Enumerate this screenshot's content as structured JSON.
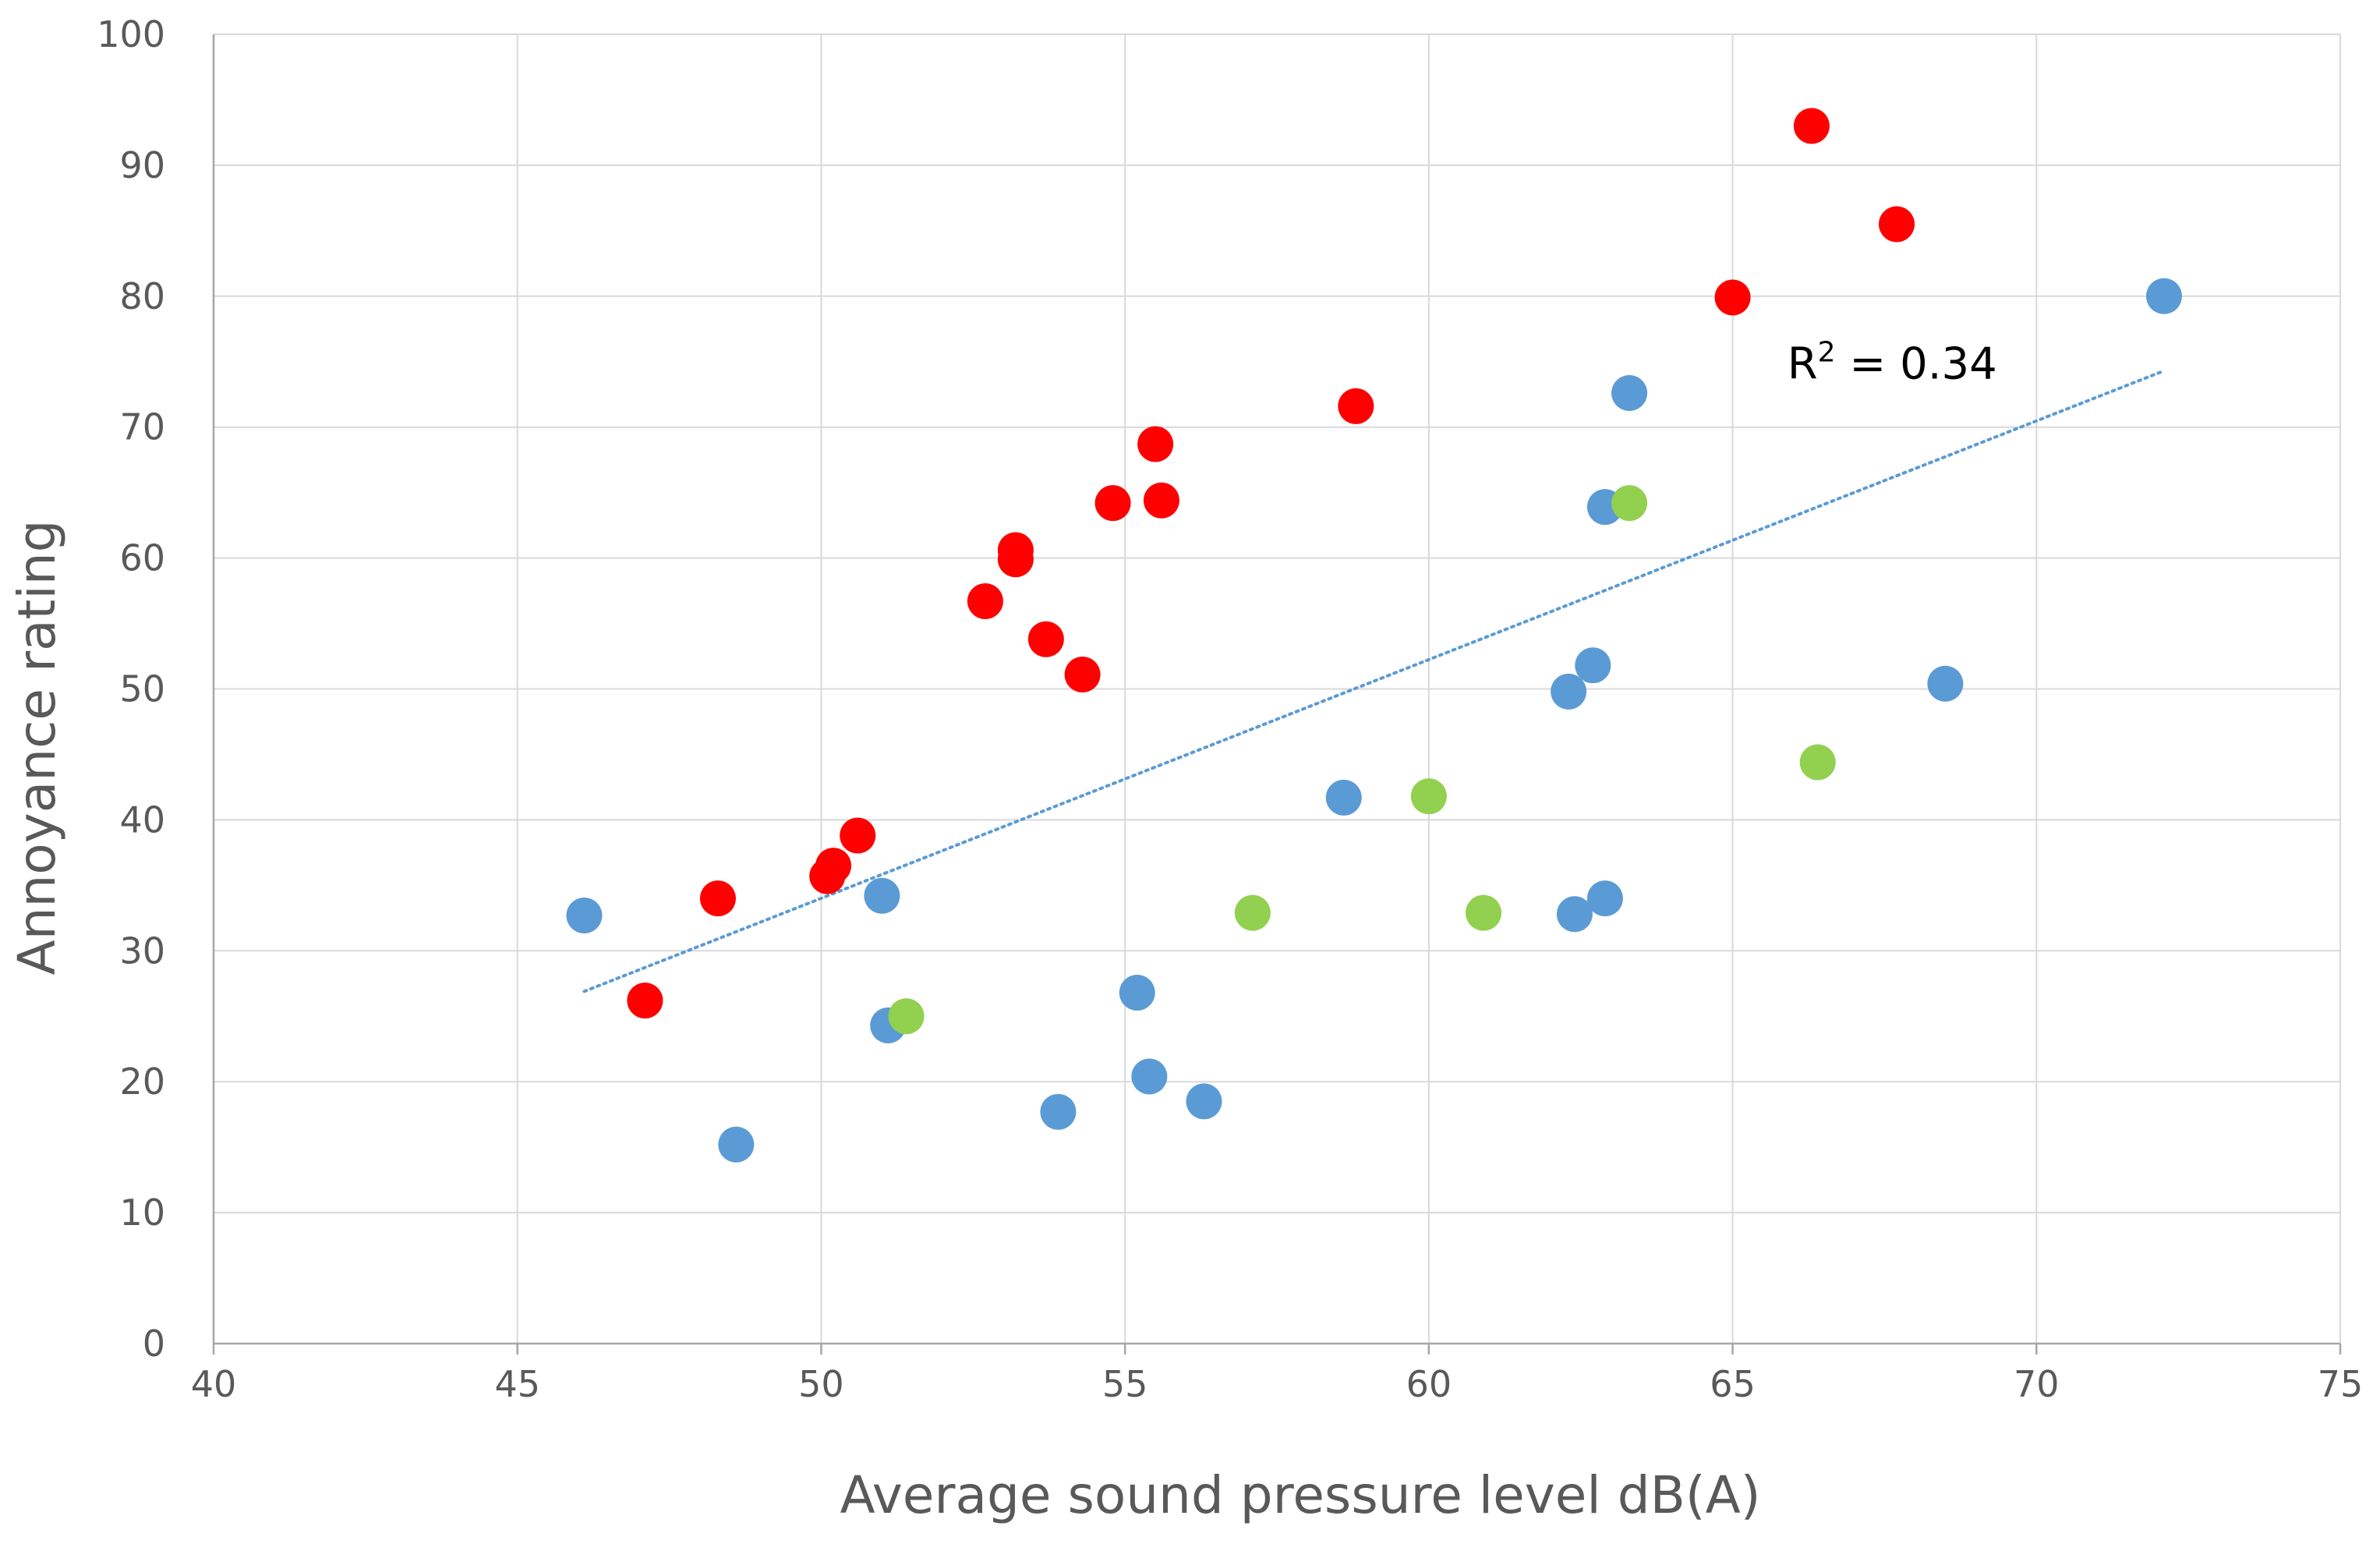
{
  "chart_data": {
    "type": "scatter",
    "title": "",
    "xlabel": "Average sound pressure level dB(A)",
    "ylabel": "Annoyance rating",
    "xlim": [
      40,
      75
    ],
    "ylim": [
      0,
      100
    ],
    "x_ticks": [
      40,
      45,
      50,
      55,
      60,
      65,
      70,
      75
    ],
    "y_ticks": [
      0,
      10,
      20,
      30,
      40,
      50,
      60,
      70,
      80,
      90,
      100
    ],
    "x_tick_labels": [
      "40",
      "45",
      "50",
      "55",
      "60",
      "65",
      "70",
      "75"
    ],
    "y_tick_labels": [
      "0",
      "10",
      "20",
      "30",
      "40",
      "50",
      "60",
      "70",
      "80",
      "90",
      "100"
    ],
    "grid": true,
    "legend": "none",
    "series": [
      {
        "name": "red",
        "color": "#ff0000",
        "points": [
          {
            "x": 47.1,
            "y": 26.2
          },
          {
            "x": 48.3,
            "y": 34.0
          },
          {
            "x": 50.1,
            "y": 35.7
          },
          {
            "x": 50.2,
            "y": 36.5
          },
          {
            "x": 50.6,
            "y": 38.8
          },
          {
            "x": 52.7,
            "y": 56.7
          },
          {
            "x": 53.2,
            "y": 60.6
          },
          {
            "x": 53.2,
            "y": 59.9
          },
          {
            "x": 53.7,
            "y": 53.8
          },
          {
            "x": 54.3,
            "y": 51.1
          },
          {
            "x": 54.8,
            "y": 64.2
          },
          {
            "x": 55.5,
            "y": 68.7
          },
          {
            "x": 55.6,
            "y": 64.4
          },
          {
            "x": 58.8,
            "y": 71.6
          },
          {
            "x": 65.0,
            "y": 79.9
          },
          {
            "x": 66.3,
            "y": 93.0
          },
          {
            "x": 67.7,
            "y": 85.5
          }
        ]
      },
      {
        "name": "blue",
        "color": "#5b9bd5",
        "points": [
          {
            "x": 46.1,
            "y": 32.7
          },
          {
            "x": 48.6,
            "y": 15.2
          },
          {
            "x": 51.0,
            "y": 34.2
          },
          {
            "x": 51.1,
            "y": 24.3
          },
          {
            "x": 53.9,
            "y": 17.7
          },
          {
            "x": 55.2,
            "y": 26.8
          },
          {
            "x": 55.4,
            "y": 20.4
          },
          {
            "x": 56.3,
            "y": 18.5
          },
          {
            "x": 58.6,
            "y": 41.7
          },
          {
            "x": 62.3,
            "y": 49.8
          },
          {
            "x": 62.4,
            "y": 32.8
          },
          {
            "x": 62.7,
            "y": 51.8
          },
          {
            "x": 62.9,
            "y": 34.0
          },
          {
            "x": 62.9,
            "y": 63.9
          },
          {
            "x": 63.3,
            "y": 72.6
          },
          {
            "x": 68.5,
            "y": 50.4
          },
          {
            "x": 72.1,
            "y": 80.0
          }
        ]
      },
      {
        "name": "green",
        "color": "#92d050",
        "points": [
          {
            "x": 51.4,
            "y": 25.0
          },
          {
            "x": 57.1,
            "y": 32.9
          },
          {
            "x": 60.0,
            "y": 41.8
          },
          {
            "x": 60.9,
            "y": 32.9
          },
          {
            "x": 63.3,
            "y": 64.2
          },
          {
            "x": 66.4,
            "y": 44.4
          }
        ]
      }
    ],
    "trendline": {
      "type": "linear",
      "style": "dotted",
      "color": "#5b9bd5",
      "x": [
        46.1,
        72.1
      ],
      "y": [
        26.9,
        74.3
      ]
    },
    "annotation": {
      "base": "R",
      "superscript": "2",
      "rest": " = 0.34",
      "at": {
        "x": 65.9,
        "y": 73.7
      }
    }
  }
}
